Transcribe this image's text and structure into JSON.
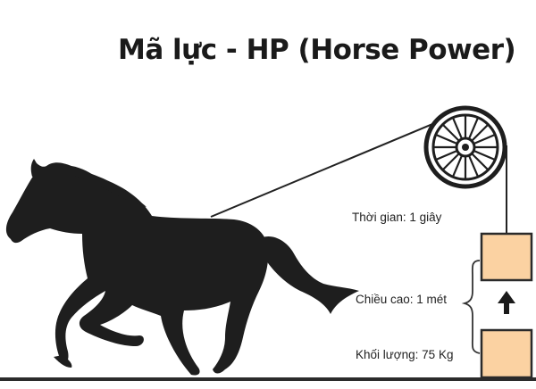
{
  "title": "Mã lực - HP (Horse Power)",
  "labels": {
    "time": "Thời gian: 1 giây",
    "height": "Chiều cao: 1 mét",
    "mass": "Khối lượng: 75 Kg"
  },
  "colors": {
    "horse": "#1e1e1e",
    "box_fill": "#fbd2a2",
    "box_stroke": "#2a2a2a",
    "ground": "#2b2b2b",
    "rope": "#222222"
  },
  "icons": [
    "pulley-wheel-icon",
    "up-arrow-icon",
    "horse-silhouette"
  ]
}
